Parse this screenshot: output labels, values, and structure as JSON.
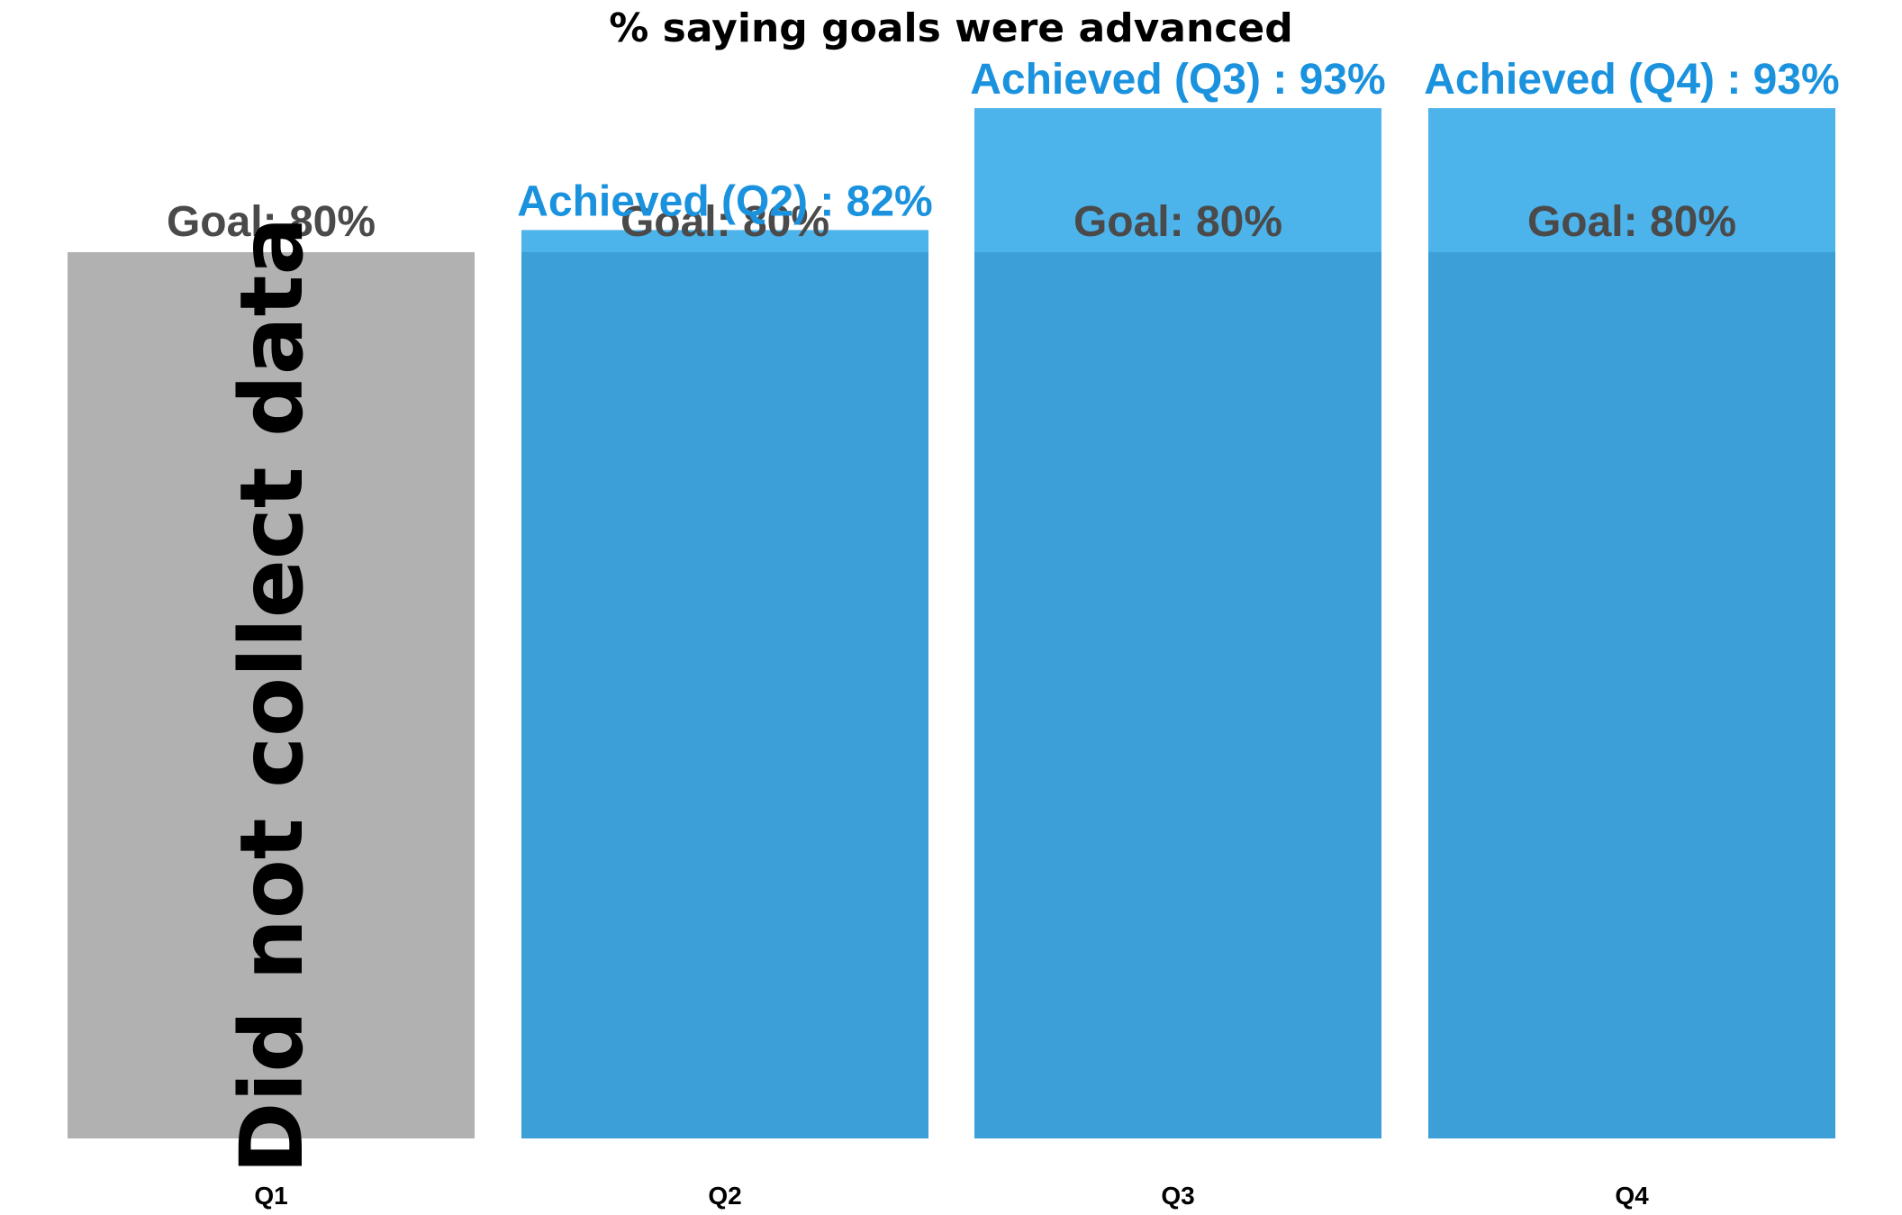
{
  "chart_data": {
    "type": "bar",
    "title": "% saying goals were advanced",
    "xlabel": "",
    "ylabel": "",
    "ylim": [
      0,
      100
    ],
    "grid": false,
    "legend": "none",
    "categories": [
      "Q1",
      "Q2",
      "Q3",
      "Q4"
    ],
    "goal": {
      "values": [
        80,
        80,
        80,
        80
      ],
      "labels": [
        "Goal: 80%",
        "Goal: 80%",
        "Goal: 80%",
        "Goal: 80%"
      ]
    },
    "achieved": {
      "values": [
        null,
        82,
        93,
        93
      ],
      "labels": [
        "",
        "Achieved (Q2) : 82%",
        "Achieved (Q3) : 93%",
        "Achieved (Q4) : 93%"
      ]
    },
    "annotations": [
      {
        "category": "Q1",
        "text": "Did not collect data"
      }
    ]
  },
  "colors": {
    "no_data_bar": "#b1b1b1",
    "goal_bar": "#3d9fd8",
    "achieved_bar": "#4db3eb",
    "goal_label": "#4a4a4a",
    "achieved_label": "#1a92de"
  }
}
